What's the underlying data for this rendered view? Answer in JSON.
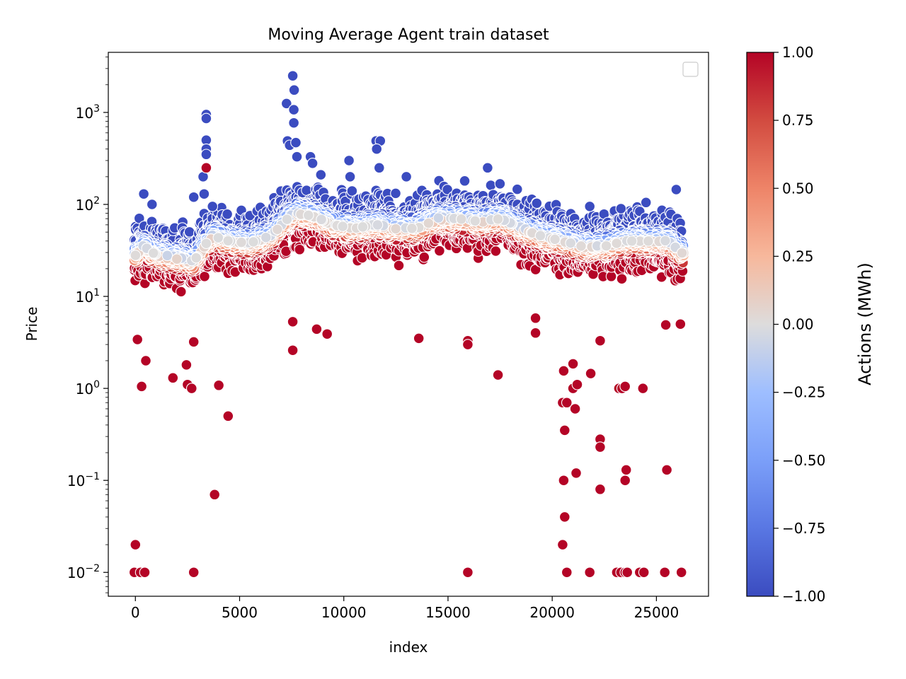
{
  "chart_data": {
    "type": "scatter",
    "title": "Moving Average Agent train dataset",
    "xlabel": "index",
    "ylabel": "Price",
    "x_scale": "linear",
    "y_scale": "log",
    "xlim": [
      -1300,
      27500
    ],
    "ylim": [
      0.0055,
      4500
    ],
    "grid": false,
    "legend": {
      "placement": "top-right",
      "entries": []
    },
    "x_ticks": [
      0,
      5000,
      10000,
      15000,
      20000,
      25000
    ],
    "x_tick_labels": [
      "0",
      "5000",
      "10000",
      "15000",
      "20000",
      "25000"
    ],
    "y_ticks": [
      0.01,
      0.1,
      1,
      10,
      100,
      1000
    ],
    "y_tick_labels": [
      {
        "base": "10",
        "exp": "−2"
      },
      {
        "base": "10",
        "exp": "−1"
      },
      {
        "base": "10",
        "exp": "0"
      },
      {
        "base": "10",
        "exp": "1"
      },
      {
        "base": "10",
        "exp": "2"
      },
      {
        "base": "10",
        "exp": "3"
      }
    ],
    "colorbar": {
      "label": "Actions (MWh)",
      "colormap": "coolwarm",
      "range": [
        -1.0,
        1.0
      ],
      "ticks": [
        1.0,
        0.75,
        0.5,
        0.25,
        0.0,
        -0.25,
        -0.5,
        -0.75,
        -1.0
      ],
      "tick_labels": [
        "1.00",
        "0.75",
        "0.50",
        "0.25",
        "0.00",
        "−0.25",
        "−0.50",
        "−0.75",
        "−1.00"
      ],
      "color_low": "#3b4cc0",
      "color_mid": "#dddcdc",
      "color_high": "#b40426"
    },
    "series_description": "Hourly price points; color encodes action value. Dense band near the moving average is white; points above are blue (action -1), below are red (action +1).",
    "envelope": {
      "x": [
        0,
        400,
        800,
        1200,
        2000,
        2800,
        3300,
        3700,
        4500,
        5500,
        6500,
        7300,
        7700,
        8500,
        9500,
        10500,
        11500,
        12500,
        13500,
        14500,
        15500,
        16500,
        17500,
        18500,
        19500,
        20500,
        21500,
        22500,
        23500,
        24500,
        25500,
        26200
      ],
      "median": [
        28,
        35,
        30,
        28,
        26,
        24,
        35,
        45,
        40,
        38,
        45,
        70,
        80,
        75,
        60,
        55,
        60,
        55,
        55,
        70,
        70,
        65,
        70,
        55,
        45,
        40,
        35,
        35,
        40,
        40,
        40,
        30
      ]
    },
    "outliers_high": [
      {
        "x": 3400,
        "y": 950
      },
      {
        "x": 3400,
        "y": 860
      },
      {
        "x": 3400,
        "y": 500
      },
      {
        "x": 3400,
        "y": 400
      },
      {
        "x": 3400,
        "y": 350
      },
      {
        "x": 3250,
        "y": 200
      },
      {
        "x": 3300,
        "y": 130
      },
      {
        "x": 7250,
        "y": 1250
      },
      {
        "x": 7550,
        "y": 2500
      },
      {
        "x": 7620,
        "y": 1750
      },
      {
        "x": 7600,
        "y": 1070
      },
      {
        "x": 7600,
        "y": 770
      },
      {
        "x": 7300,
        "y": 490
      },
      {
        "x": 7400,
        "y": 440
      },
      {
        "x": 7700,
        "y": 470
      },
      {
        "x": 7750,
        "y": 330
      },
      {
        "x": 8400,
        "y": 330
      },
      {
        "x": 8500,
        "y": 280
      },
      {
        "x": 8900,
        "y": 210
      },
      {
        "x": 10250,
        "y": 300
      },
      {
        "x": 10300,
        "y": 200
      },
      {
        "x": 11550,
        "y": 490
      },
      {
        "x": 11750,
        "y": 490
      },
      {
        "x": 11580,
        "y": 400
      },
      {
        "x": 11700,
        "y": 250
      },
      {
        "x": 16900,
        "y": 250
      },
      {
        "x": 25950,
        "y": 145
      },
      {
        "x": 400,
        "y": 130
      },
      {
        "x": 800,
        "y": 100
      },
      {
        "x": 2800,
        "y": 120
      },
      {
        "x": 3700,
        "y": 95
      },
      {
        "x": 13000,
        "y": 200
      },
      {
        "x": 15800,
        "y": 180
      },
      {
        "x": 21800,
        "y": 95
      },
      {
        "x": 23300,
        "y": 90
      },
      {
        "x": 24500,
        "y": 105
      }
    ],
    "outliers_low": [
      {
        "x": 3400,
        "y": 250
      },
      {
        "x": 100,
        "y": 3.4
      },
      {
        "x": 300,
        "y": 1.05
      },
      {
        "x": 500,
        "y": 2.0
      },
      {
        "x": 1800,
        "y": 1.3
      },
      {
        "x": 2450,
        "y": 1.8
      },
      {
        "x": 2500,
        "y": 1.1
      },
      {
        "x": 2700,
        "y": 1.0
      },
      {
        "x": 2800,
        "y": 3.2
      },
      {
        "x": 3800,
        "y": 0.07
      },
      {
        "x": 4000,
        "y": 1.08
      },
      {
        "x": 4450,
        "y": 0.5
      },
      {
        "x": 7550,
        "y": 2.6
      },
      {
        "x": 7550,
        "y": 5.3
      },
      {
        "x": 8700,
        "y": 4.4
      },
      {
        "x": 9200,
        "y": 3.9
      },
      {
        "x": 13600,
        "y": 3.5
      },
      {
        "x": 15950,
        "y": 3.3
      },
      {
        "x": 15950,
        "y": 3.0
      },
      {
        "x": 17400,
        "y": 1.4
      },
      {
        "x": 19200,
        "y": 4.0
      },
      {
        "x": 19200,
        "y": 5.8
      },
      {
        "x": 20500,
        "y": 0.7
      },
      {
        "x": 20550,
        "y": 0.1
      },
      {
        "x": 20550,
        "y": 1.55
      },
      {
        "x": 20600,
        "y": 0.35
      },
      {
        "x": 20600,
        "y": 0.04
      },
      {
        "x": 20700,
        "y": 0.7
      },
      {
        "x": 20500,
        "y": 0.02
      },
      {
        "x": 21000,
        "y": 1.0
      },
      {
        "x": 21100,
        "y": 0.6
      },
      {
        "x": 21150,
        "y": 0.12
      },
      {
        "x": 21200,
        "y": 1.1
      },
      {
        "x": 21000,
        "y": 1.85
      },
      {
        "x": 21850,
        "y": 1.45
      },
      {
        "x": 22300,
        "y": 0.28
      },
      {
        "x": 22300,
        "y": 0.23
      },
      {
        "x": 22300,
        "y": 0.08
      },
      {
        "x": 22300,
        "y": 3.3
      },
      {
        "x": 23200,
        "y": 1.0
      },
      {
        "x": 23350,
        "y": 1.0
      },
      {
        "x": 23500,
        "y": 1.05
      },
      {
        "x": 23500,
        "y": 0.1
      },
      {
        "x": 23550,
        "y": 0.13
      },
      {
        "x": 24350,
        "y": 1.0
      },
      {
        "x": 25500,
        "y": 0.13
      },
      {
        "x": 25450,
        "y": 4.9
      },
      {
        "x": 26150,
        "y": 5.0
      }
    ],
    "outliers_floor": [
      {
        "x": 0,
        "y": 0.02
      },
      {
        "x": -50,
        "y": 0.01
      },
      {
        "x": 250,
        "y": 0.01
      },
      {
        "x": 450,
        "y": 0.01
      },
      {
        "x": 2800,
        "y": 0.01
      },
      {
        "x": 15950,
        "y": 0.01
      },
      {
        "x": 20500,
        "y": 0.02
      },
      {
        "x": 20700,
        "y": 0.01
      },
      {
        "x": 21800,
        "y": 0.01
      },
      {
        "x": 23100,
        "y": 0.01
      },
      {
        "x": 23300,
        "y": 0.01
      },
      {
        "x": 23500,
        "y": 0.01
      },
      {
        "x": 23600,
        "y": 0.01
      },
      {
        "x": 24200,
        "y": 0.01
      },
      {
        "x": 24400,
        "y": 0.01
      },
      {
        "x": 25400,
        "y": 0.01
      },
      {
        "x": 26200,
        "y": 0.01
      }
    ]
  }
}
